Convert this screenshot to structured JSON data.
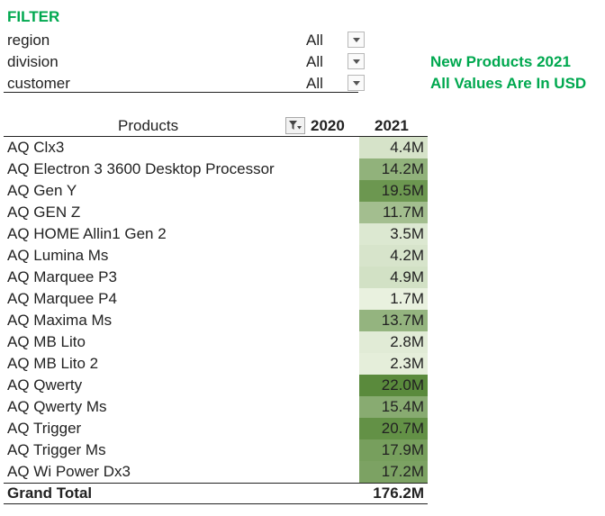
{
  "filter": {
    "title": "FILTER",
    "rows": [
      {
        "label": "region",
        "value": "All"
      },
      {
        "label": "division",
        "value": "All"
      },
      {
        "label": "customer",
        "value": "All"
      }
    ]
  },
  "notes": [
    "New Products 2021",
    "All Values Are In USD"
  ],
  "pivot": {
    "header": {
      "products": "Products",
      "col_2020": "2020",
      "col_2021": "2021"
    },
    "rows": [
      {
        "name": "AQ Clx3",
        "value_2021": "4.4M",
        "amount": 4.4
      },
      {
        "name": "AQ Electron 3 3600 Desktop Processor",
        "value_2021": "14.2M",
        "amount": 14.2
      },
      {
        "name": "AQ Gen Y",
        "value_2021": "19.5M",
        "amount": 19.5
      },
      {
        "name": "AQ GEN Z",
        "value_2021": "11.7M",
        "amount": 11.7
      },
      {
        "name": "AQ HOME Allin1 Gen 2",
        "value_2021": "3.5M",
        "amount": 3.5
      },
      {
        "name": "AQ Lumina Ms",
        "value_2021": "4.2M",
        "amount": 4.2
      },
      {
        "name": "AQ Marquee P3",
        "value_2021": "4.9M",
        "amount": 4.9
      },
      {
        "name": "AQ Marquee P4",
        "value_2021": "1.7M",
        "amount": 1.7
      },
      {
        "name": "AQ Maxima Ms",
        "value_2021": "13.7M",
        "amount": 13.7
      },
      {
        "name": "AQ MB Lito",
        "value_2021": "2.8M",
        "amount": 2.8
      },
      {
        "name": "AQ MB Lito 2",
        "value_2021": "2.3M",
        "amount": 2.3
      },
      {
        "name": "AQ Qwerty",
        "value_2021": "22.0M",
        "amount": 22.0
      },
      {
        "name": "AQ Qwerty Ms",
        "value_2021": "15.4M",
        "amount": 15.4
      },
      {
        "name": "AQ Trigger",
        "value_2021": "20.7M",
        "amount": 20.7
      },
      {
        "name": "AQ Trigger Ms",
        "value_2021": "17.9M",
        "amount": 17.9
      },
      {
        "name": "AQ Wi Power Dx3",
        "value_2021": "17.2M",
        "amount": 17.2
      }
    ],
    "total": {
      "label": "Grand Total",
      "value_2021": "176.2M"
    }
  },
  "colors": {
    "accent_green": "#00a84f",
    "scale_low": "#e9f1df",
    "scale_high": "#5a8a3c"
  },
  "icons": {
    "dropdown": "chevron-down-icon",
    "filter": "filter-icon"
  }
}
